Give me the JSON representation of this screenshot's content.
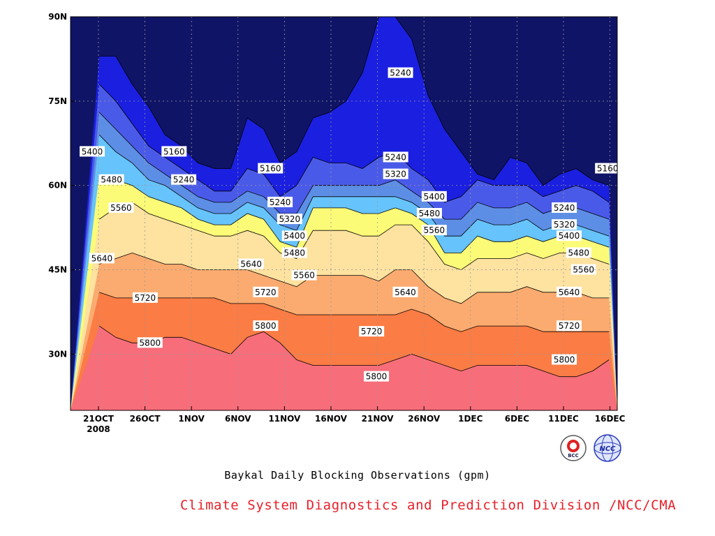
{
  "caption": {
    "title": "Baykal Daily Blocking Observations (gpm)",
    "credit": "Climate System Diagnostics and Prediction Division /NCC/CMA"
  },
  "logos": {
    "left_icon": "bcc-logo",
    "left_text": "BCC",
    "right_icon": "ncc-logo",
    "right_text": "NCC"
  },
  "colors": {
    "bg_navy": "#101466",
    "levels": [
      "#101466",
      "#1a1fe0",
      "#4a5ae8",
      "#5d8ee6",
      "#66c3fb",
      "#fbfb77",
      "#fde2a0",
      "#fbab6f",
      "#fb7c44",
      "#f76d7a",
      "#e02a36"
    ]
  },
  "chart_data": {
    "type": "contour",
    "title": "Baykal Daily Blocking Observations (gpm)",
    "xlabel": "",
    "ylabel": "",
    "x_ticks": [
      "21OCT",
      "26OCT",
      "1NOV",
      "6NOV",
      "11NOV",
      "16NOV",
      "21NOV",
      "26NOV",
      "1DEC",
      "6DEC",
      "11DEC",
      "16DEC"
    ],
    "x_year_label": "2008",
    "y_ticks": [
      "30N",
      "45N",
      "60N",
      "75N",
      "90N"
    ],
    "ylim": [
      20,
      90
    ],
    "grid": true,
    "levels": [
      5160,
      5240,
      5320,
      5400,
      5480,
      5560,
      5640,
      5720,
      5800
    ],
    "x_days": [
      -2,
      0,
      2,
      4,
      6,
      8,
      10,
      12,
      14,
      16,
      18,
      20,
      22,
      24,
      26,
      28,
      30,
      32,
      34,
      36,
      38,
      40,
      42,
      44,
      46,
      48,
      50,
      52,
      54,
      56,
      58,
      60
    ],
    "contours": [
      {
        "level": 5160,
        "lat": [
          83,
          83,
          78,
          74,
          69,
          67,
          64,
          63,
          63,
          72,
          70,
          64,
          66,
          72,
          73,
          75,
          80,
          90,
          90,
          86,
          76,
          70,
          66,
          62,
          61,
          65,
          64,
          60,
          62,
          63,
          61,
          60
        ]
      },
      {
        "level": 5240,
        "lat": [
          78,
          75,
          71,
          67,
          65,
          63,
          61,
          59,
          59,
          63,
          62,
          58,
          60,
          65,
          64,
          64,
          63,
          65,
          66,
          63,
          61,
          57,
          58,
          61,
          60,
          60,
          60,
          58,
          59,
          60,
          59,
          57
        ]
      },
      {
        "level": 5320,
        "lat": [
          73,
          70,
          67,
          64,
          62,
          60,
          58,
          57,
          57,
          59,
          58,
          55,
          55,
          60,
          60,
          60,
          60,
          60,
          61,
          59,
          57,
          54,
          54,
          57,
          56,
          56,
          57,
          55,
          56,
          56,
          55,
          54
        ]
      },
      {
        "level": 5400,
        "lat": [
          69,
          66,
          64,
          61,
          60,
          58,
          56,
          55,
          55,
          57,
          56,
          53,
          52,
          58,
          58,
          58,
          58,
          58,
          58,
          57,
          55,
          51,
          51,
          54,
          53,
          53,
          54,
          52,
          53,
          53,
          52,
          51
        ]
      },
      {
        "level": 5480,
        "lat": [
          62,
          61,
          60,
          58,
          57,
          56,
          54,
          53,
          53,
          55,
          54,
          50,
          49,
          56,
          56,
          56,
          55,
          55,
          56,
          55,
          53,
          48,
          48,
          51,
          50,
          50,
          51,
          50,
          51,
          51,
          50,
          49
        ]
      },
      {
        "level": 5560,
        "lat": [
          54,
          56,
          57,
          55,
          54,
          53,
          52,
          51,
          51,
          52,
          51,
          48,
          47,
          52,
          52,
          52,
          51,
          51,
          53,
          53,
          50,
          46,
          45,
          47,
          47,
          47,
          48,
          47,
          48,
          48,
          47,
          46
        ]
      },
      {
        "level": 5640,
        "lat": [
          46,
          47,
          48,
          47,
          46,
          46,
          45,
          45,
          45,
          45,
          44,
          43,
          42,
          44,
          44,
          44,
          44,
          43,
          45,
          45,
          42,
          40,
          39,
          41,
          41,
          41,
          42,
          41,
          41,
          41,
          40,
          40
        ]
      },
      {
        "level": 5720,
        "lat": [
          41,
          40,
          40,
          40,
          40,
          40,
          40,
          40,
          39,
          39,
          39,
          38,
          37,
          37,
          37,
          37,
          37,
          37,
          37,
          38,
          37,
          35,
          34,
          35,
          35,
          35,
          35,
          34,
          34,
          34,
          34,
          34
        ]
      },
      {
        "level": 5800,
        "lat": [
          35,
          33,
          32,
          32,
          33,
          33,
          32,
          31,
          30,
          33,
          34,
          32,
          29,
          28,
          28,
          28,
          28,
          28,
          29,
          30,
          29,
          28,
          27,
          28,
          28,
          28,
          28,
          27,
          26,
          26,
          27,
          29
        ]
      }
    ],
    "contour_labels": [
      {
        "text": "5160",
        "day": 16,
        "lat": 66
      },
      {
        "text": "5160",
        "day": 36,
        "lat": 63
      },
      {
        "text": "5160",
        "day": 106,
        "lat": 63
      },
      {
        "text": "5240",
        "day": 63,
        "lat": 80
      },
      {
        "text": "5240",
        "day": 62,
        "lat": 65
      },
      {
        "text": "5240",
        "day": 18,
        "lat": 61
      },
      {
        "text": "5240",
        "day": 38,
        "lat": 57
      },
      {
        "text": "5240",
        "day": 97,
        "lat": 56
      },
      {
        "text": "5320",
        "day": 62,
        "lat": 62
      },
      {
        "text": "5320",
        "day": 40,
        "lat": 54
      },
      {
        "text": "5320",
        "day": 97,
        "lat": 53
      },
      {
        "text": "5400",
        "day": -1,
        "lat": 66
      },
      {
        "text": "5400",
        "day": 70,
        "lat": 58
      },
      {
        "text": "5400",
        "day": 41,
        "lat": 51
      },
      {
        "text": "5400",
        "day": 98,
        "lat": 51
      },
      {
        "text": "5480",
        "day": 3,
        "lat": 61
      },
      {
        "text": "5480",
        "day": 69,
        "lat": 55
      },
      {
        "text": "5480",
        "day": 41,
        "lat": 48
      },
      {
        "text": "5480",
        "day": 100,
        "lat": 48
      },
      {
        "text": "5560",
        "day": 5,
        "lat": 56
      },
      {
        "text": "5560",
        "day": 70,
        "lat": 52
      },
      {
        "text": "5560",
        "day": 43,
        "lat": 44
      },
      {
        "text": "5560",
        "day": 101,
        "lat": 45
      },
      {
        "text": "5640",
        "day": 1,
        "lat": 47
      },
      {
        "text": "5640",
        "day": 32,
        "lat": 46
      },
      {
        "text": "5640",
        "day": 64,
        "lat": 41
      },
      {
        "text": "5640",
        "day": 98,
        "lat": 41
      },
      {
        "text": "5720",
        "day": 10,
        "lat": 40
      },
      {
        "text": "5720",
        "day": 35,
        "lat": 41
      },
      {
        "text": "5720",
        "day": 57,
        "lat": 34
      },
      {
        "text": "5720",
        "day": 98,
        "lat": 35
      },
      {
        "text": "5800",
        "day": 11,
        "lat": 32
      },
      {
        "text": "5800",
        "day": 35,
        "lat": 35
      },
      {
        "text": "5800",
        "day": 58,
        "lat": 26
      },
      {
        "text": "5800",
        "day": 97,
        "lat": 29
      }
    ]
  }
}
